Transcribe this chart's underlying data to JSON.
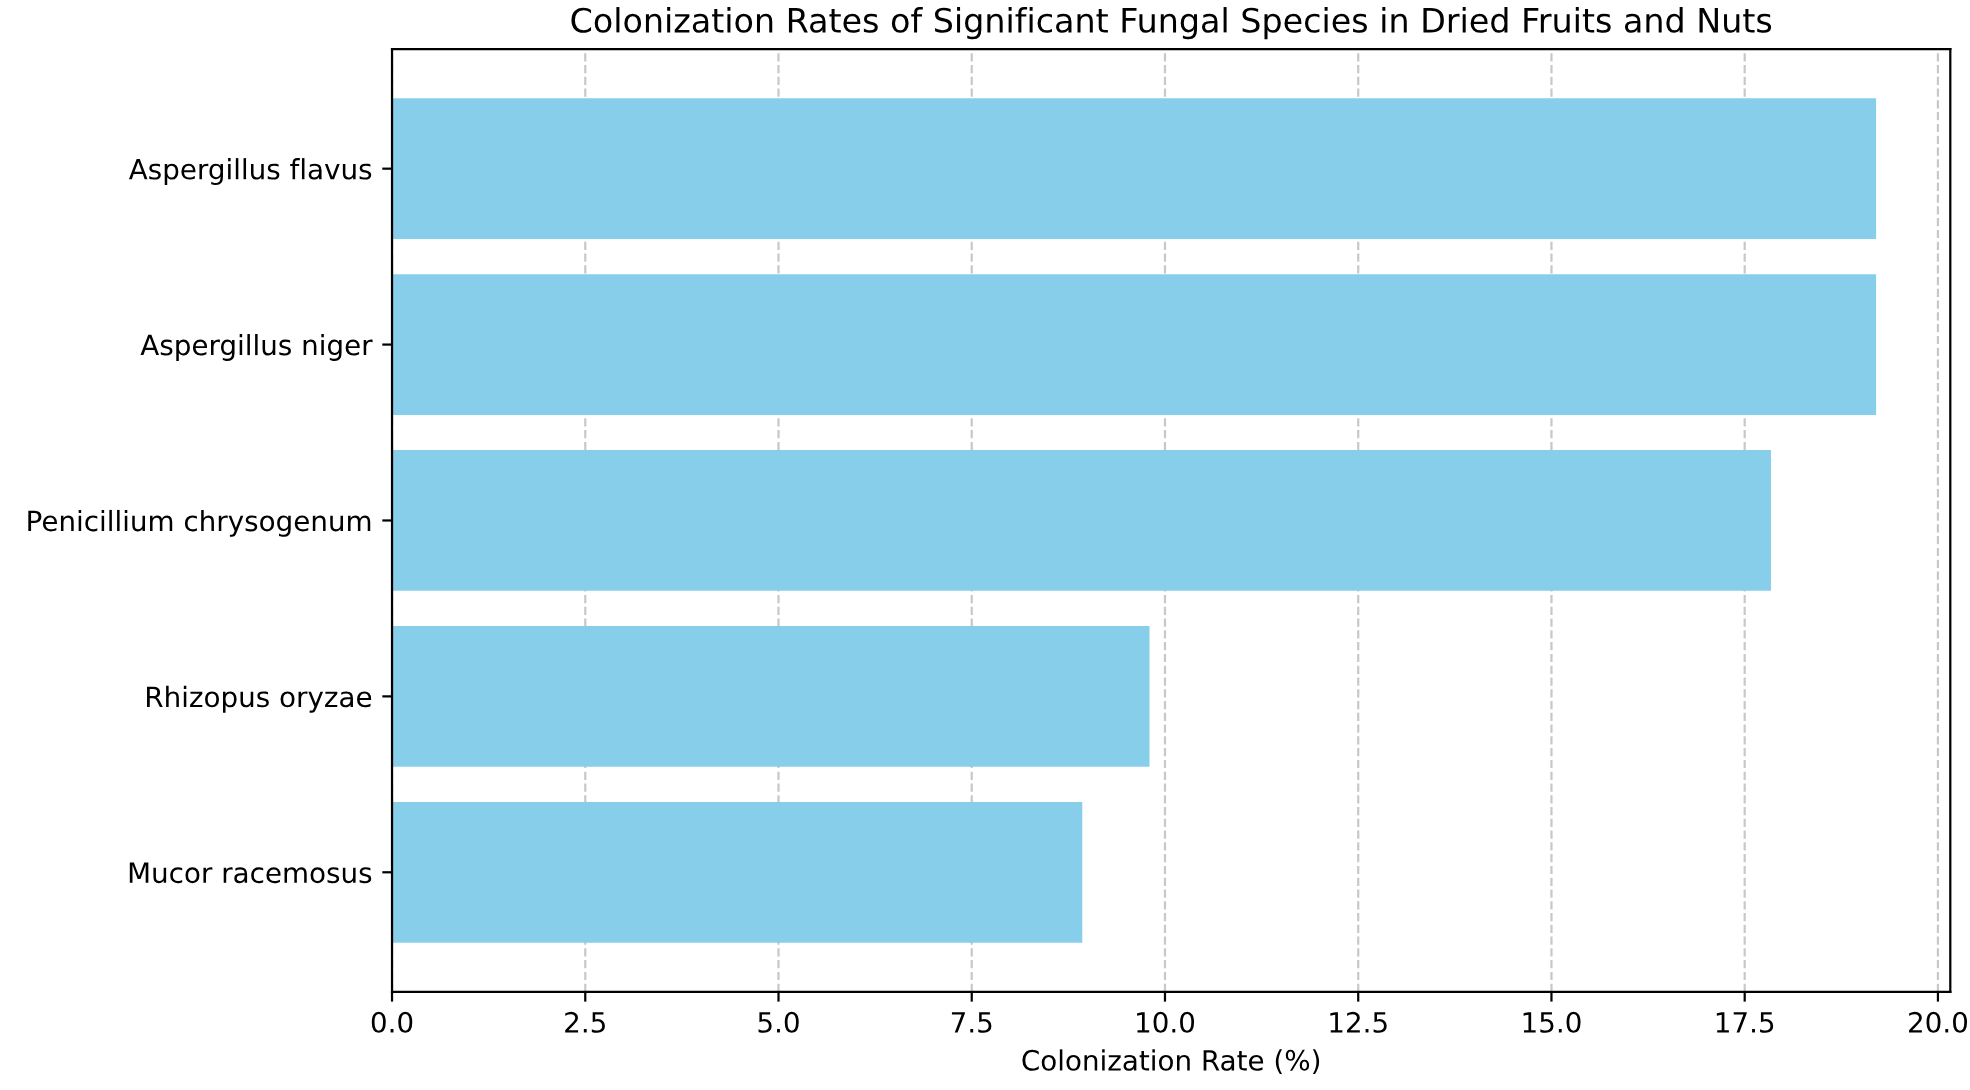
{
  "chart_data": {
    "type": "bar",
    "orientation": "horizontal",
    "title": "Colonization Rates of Significant Fungal Species in Dried Fruits and Nuts",
    "xlabel": "Colonization Rate (%)",
    "categories": [
      "Aspergillus flavus",
      "Aspergillus niger",
      "Penicillium chrysogenum",
      "Rhizopus oryzae",
      "Mucor racemosus"
    ],
    "values": [
      19.2,
      19.2,
      17.84,
      9.8,
      8.93
    ],
    "color": "#87ceeb",
    "xlim": [
      0,
      20.16
    ],
    "xticks": [
      {
        "value": 0,
        "label": "0.0"
      },
      2.5,
      {
        "value": 5,
        "label": "5.0"
      },
      7.5,
      {
        "value": 10,
        "label": "10.0"
      },
      12.5,
      {
        "value": 15,
        "label": "15.0"
      },
      17.5,
      {
        "value": 20,
        "label": "20.0"
      }
    ],
    "grid": "x"
  }
}
